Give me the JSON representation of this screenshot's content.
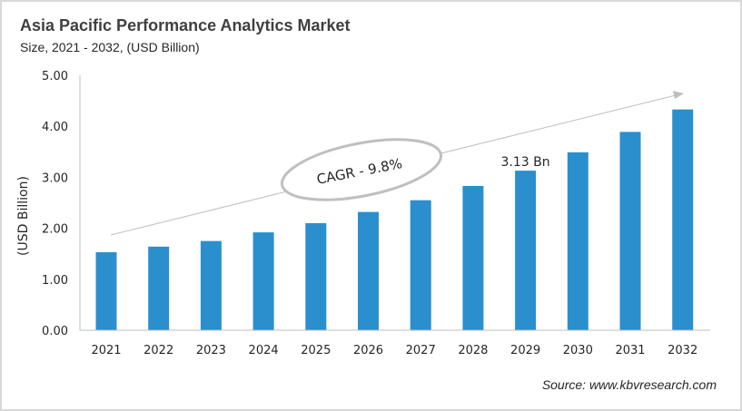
{
  "chart_data": {
    "type": "bar",
    "title": "Asia Pacific Performance Analytics Market",
    "subtitle": "Size, 2021 - 2032, (USD Billion)",
    "xlabel": "",
    "ylabel": "(USD Billion)",
    "ylim": [
      0,
      5
    ],
    "yticks": [
      "0.00",
      "1.00",
      "2.00",
      "3.00",
      "4.00",
      "5.00"
    ],
    "categories": [
      "2021",
      "2022",
      "2023",
      "2024",
      "2025",
      "2026",
      "2027",
      "2028",
      "2029",
      "2030",
      "2031",
      "2032"
    ],
    "values": [
      1.53,
      1.64,
      1.75,
      1.92,
      2.1,
      2.32,
      2.55,
      2.83,
      3.13,
      3.49,
      3.89,
      4.33
    ],
    "bar_color": "#2b8fcd",
    "grid": false,
    "annotations": {
      "cagr": "CAGR - 9.8%",
      "value_label": "3.13 Bn",
      "value_label_category": "2029"
    },
    "source": "Source: www.kbvresearch.com"
  }
}
